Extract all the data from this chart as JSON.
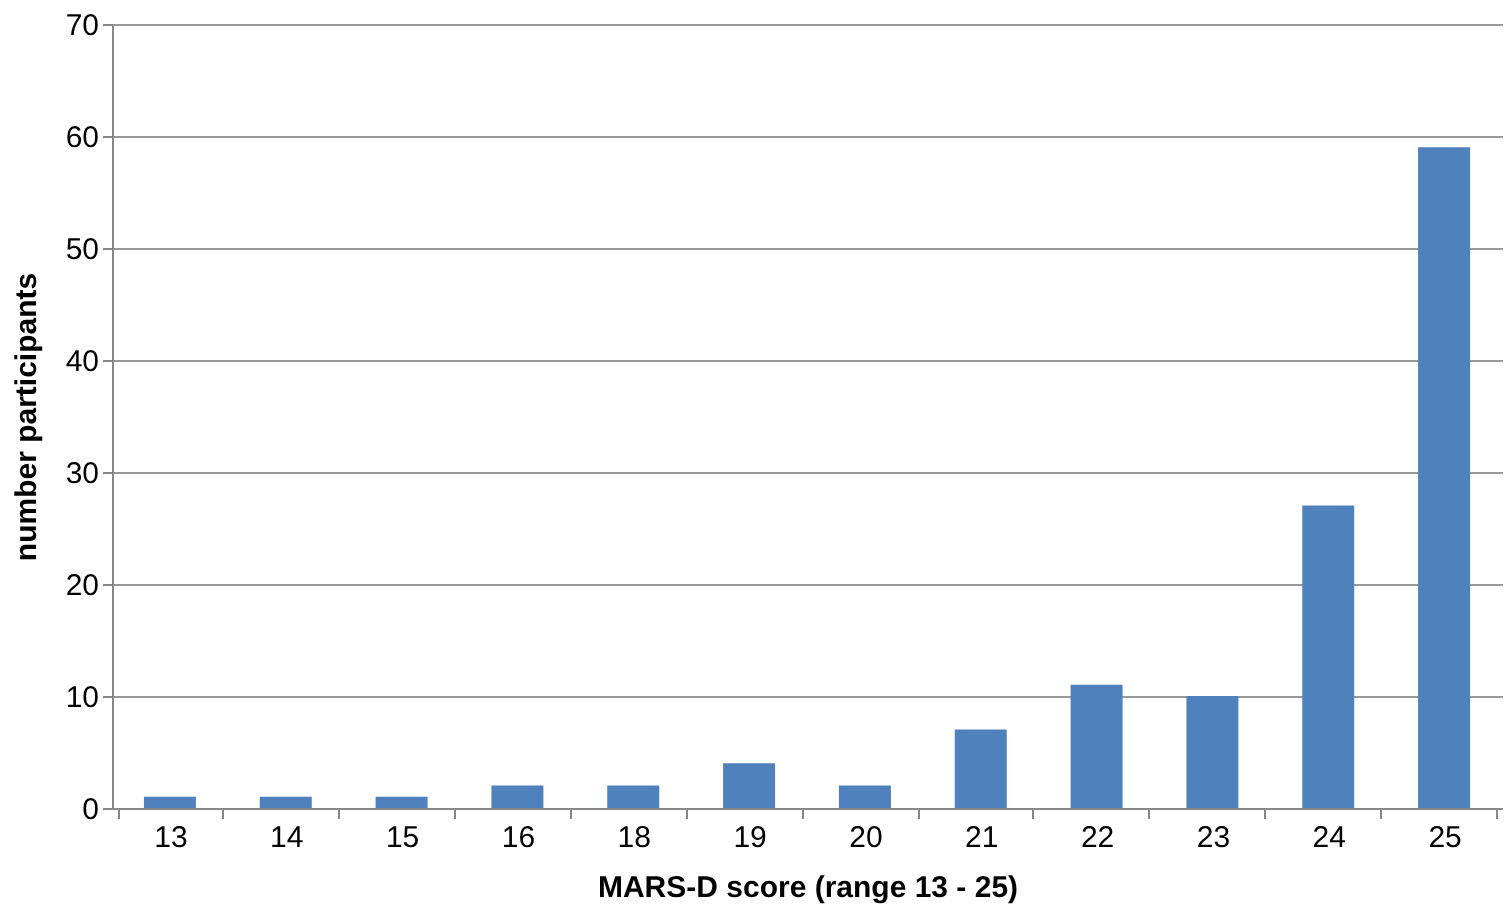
{
  "chart_data": {
    "type": "bar",
    "xlabel": "MARS-D score (range 13 - 25)",
    "ylabel": "number participants",
    "categories": [
      "13",
      "14",
      "15",
      "16",
      "18",
      "19",
      "20",
      "21",
      "22",
      "23",
      "24",
      "25"
    ],
    "values": [
      1,
      1,
      1,
      2,
      2,
      4,
      2,
      7,
      11,
      10,
      27,
      59
    ],
    "color": "#4f81bd",
    "ylim": [
      0,
      70
    ],
    "yticks": [
      0,
      10,
      20,
      30,
      40,
      50,
      60,
      70
    ],
    "grid": "y"
  }
}
